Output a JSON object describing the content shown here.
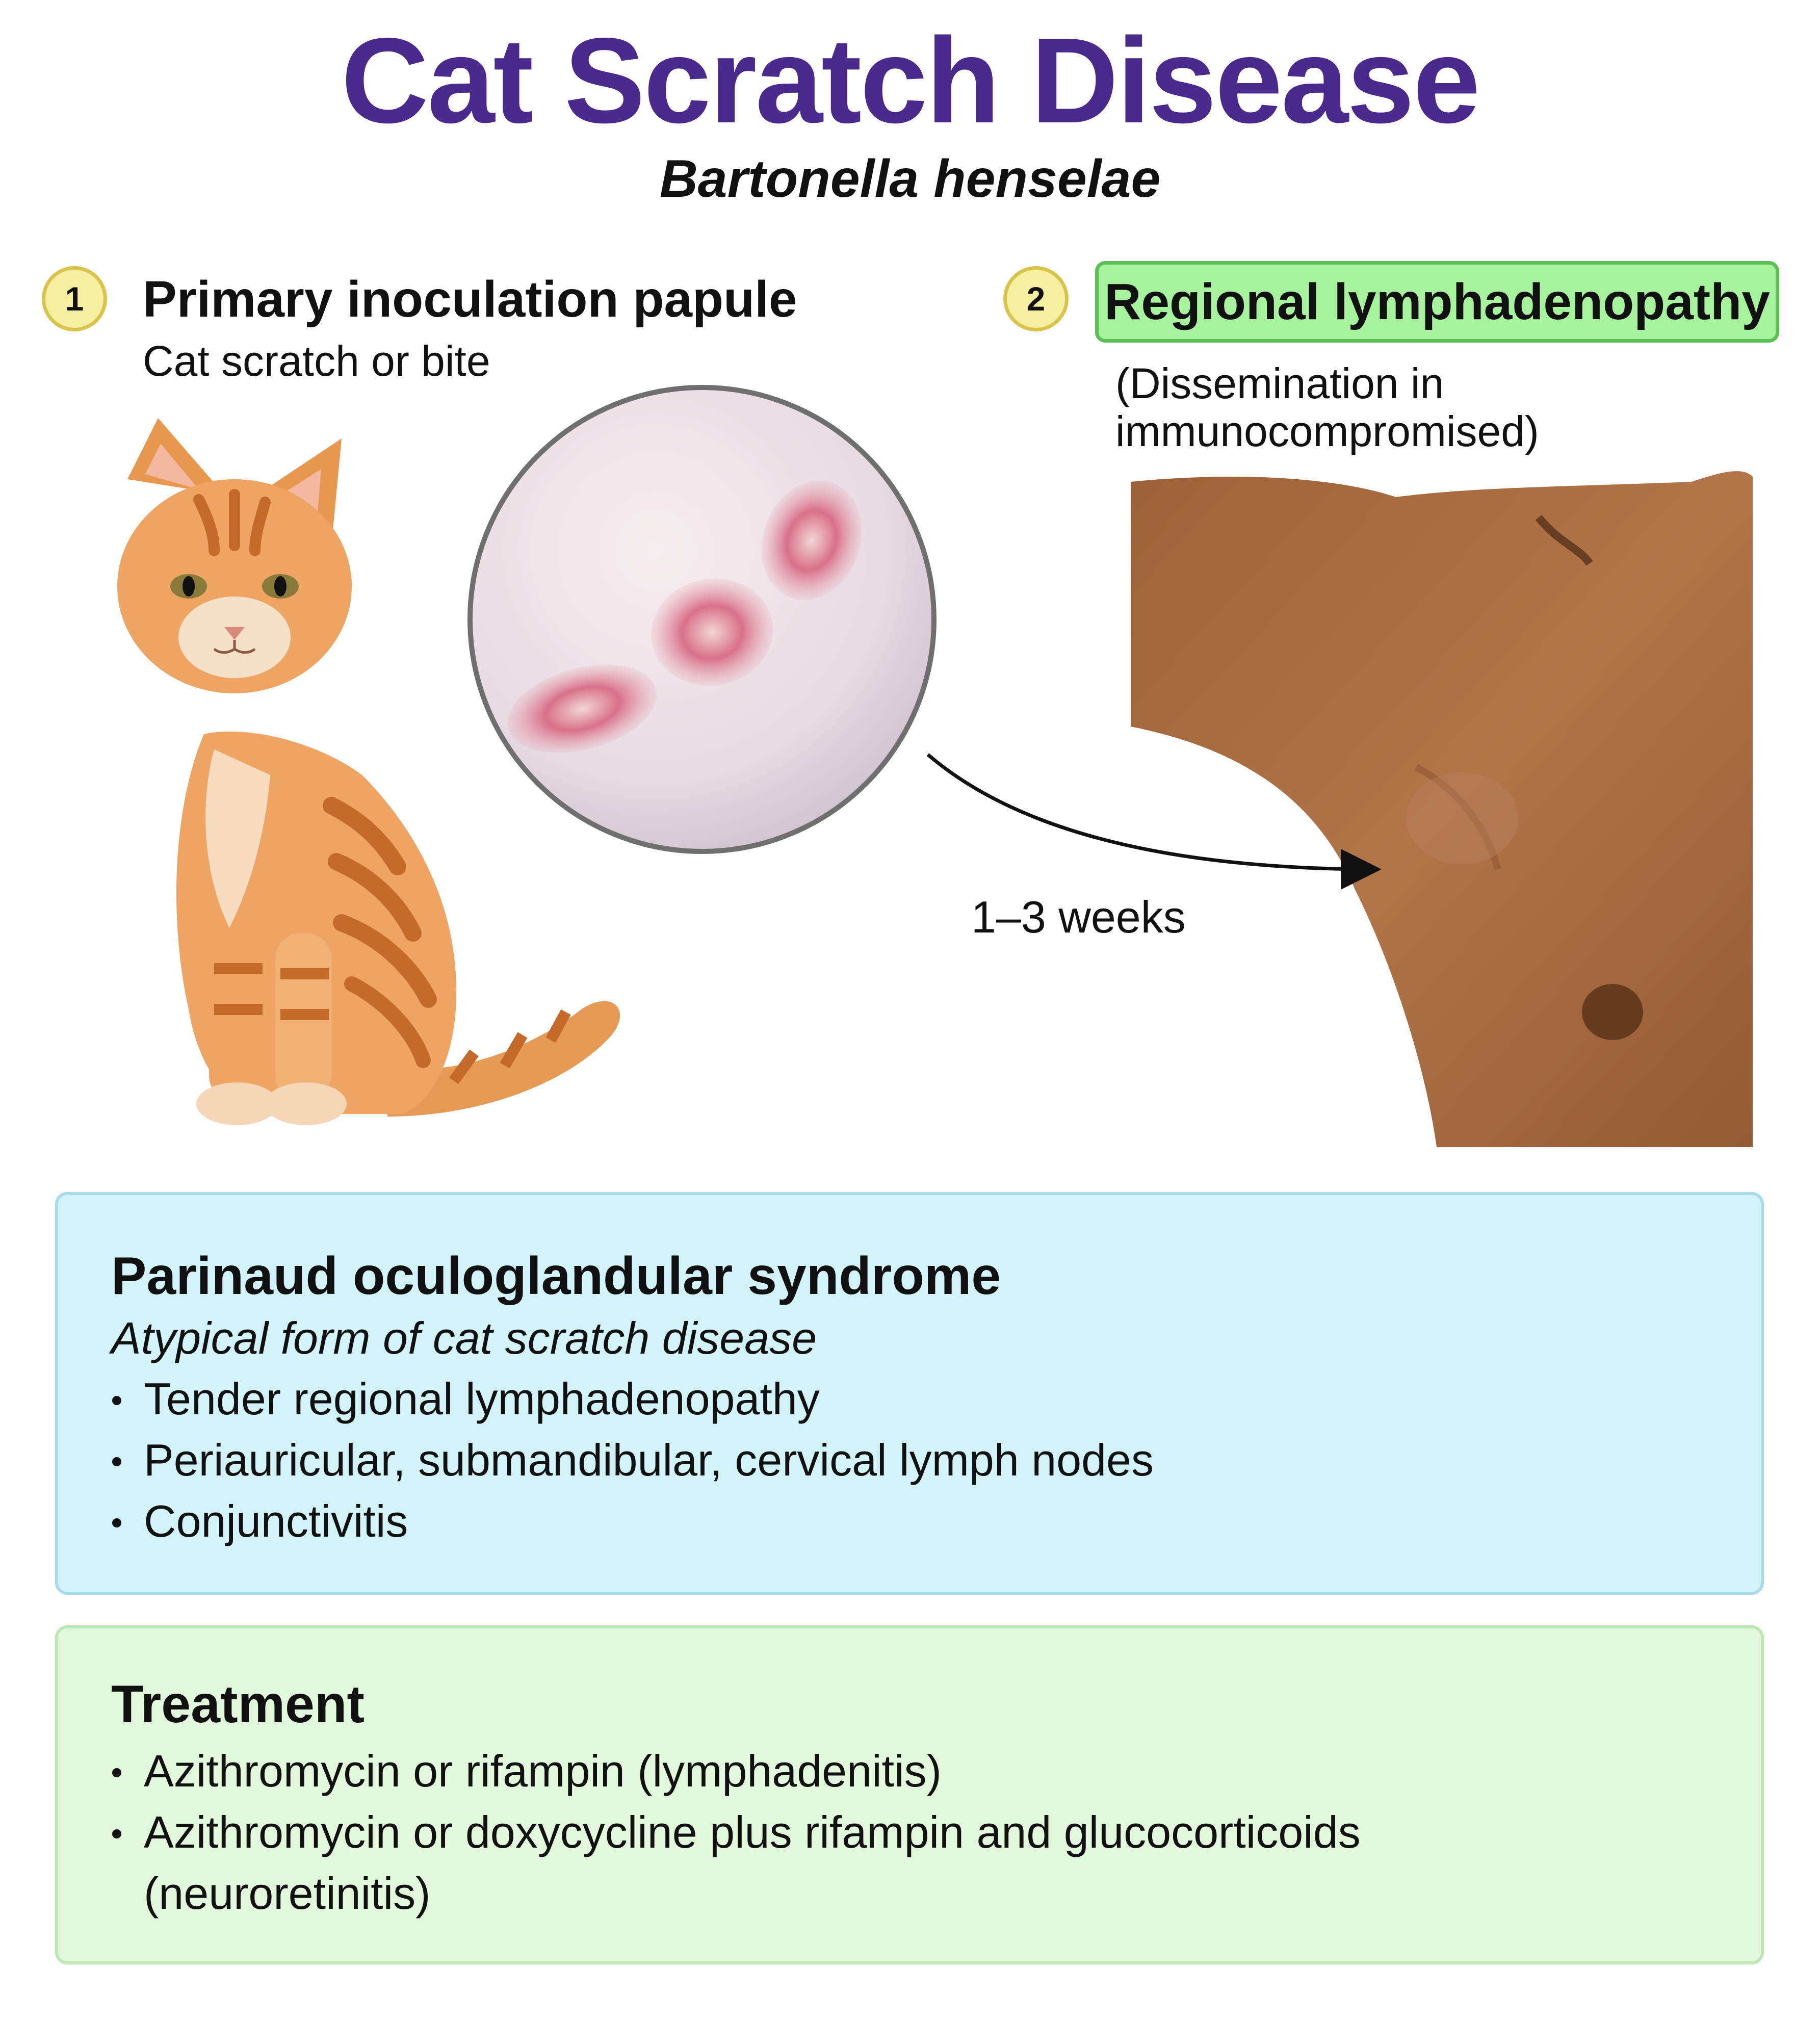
{
  "header": {
    "title": "Cat Scratch Disease",
    "subtitle": "Bartonella henselae"
  },
  "steps": [
    {
      "number": "1",
      "heading": "Primary inoculation papule",
      "subheading": "Cat scratch or bite",
      "images": [
        "orange-kitten",
        "skin-papules-closeup"
      ]
    },
    {
      "number": "2",
      "heading": "Regional lymphadenopathy",
      "note": "(Dissemination in immunocompromised)",
      "images": [
        "axillary-lymphadenopathy"
      ]
    }
  ],
  "arrow": {
    "label": "1–3 weeks"
  },
  "parinaud": {
    "title": "Parinaud oculoglandular syndrome",
    "subtitle": "Atypical form of cat scratch disease",
    "items": [
      "Tender regional lymphadenopathy",
      "Periauricular, submandibular, cervical lymph nodes",
      "Conjunctivitis"
    ]
  },
  "treatment": {
    "title": "Treatment",
    "items": [
      "Azithromycin or rifampin (lymphadenitis)",
      "Azithromycin or doxycycline plus rifampin and glucocorticoids (neuroretinitis)"
    ]
  },
  "colors": {
    "title": "#4b2a8d",
    "badge_fill": "#f6eea0",
    "badge_border": "#d8c44a",
    "step2_fill": "#a6f29d",
    "step2_border": "#5bbf55",
    "parinaud_fill": "#d3f3fa",
    "parinaud_border": "#a9dceb",
    "treatment_fill": "#e2f8dc",
    "treatment_border": "#bfe6b6"
  }
}
